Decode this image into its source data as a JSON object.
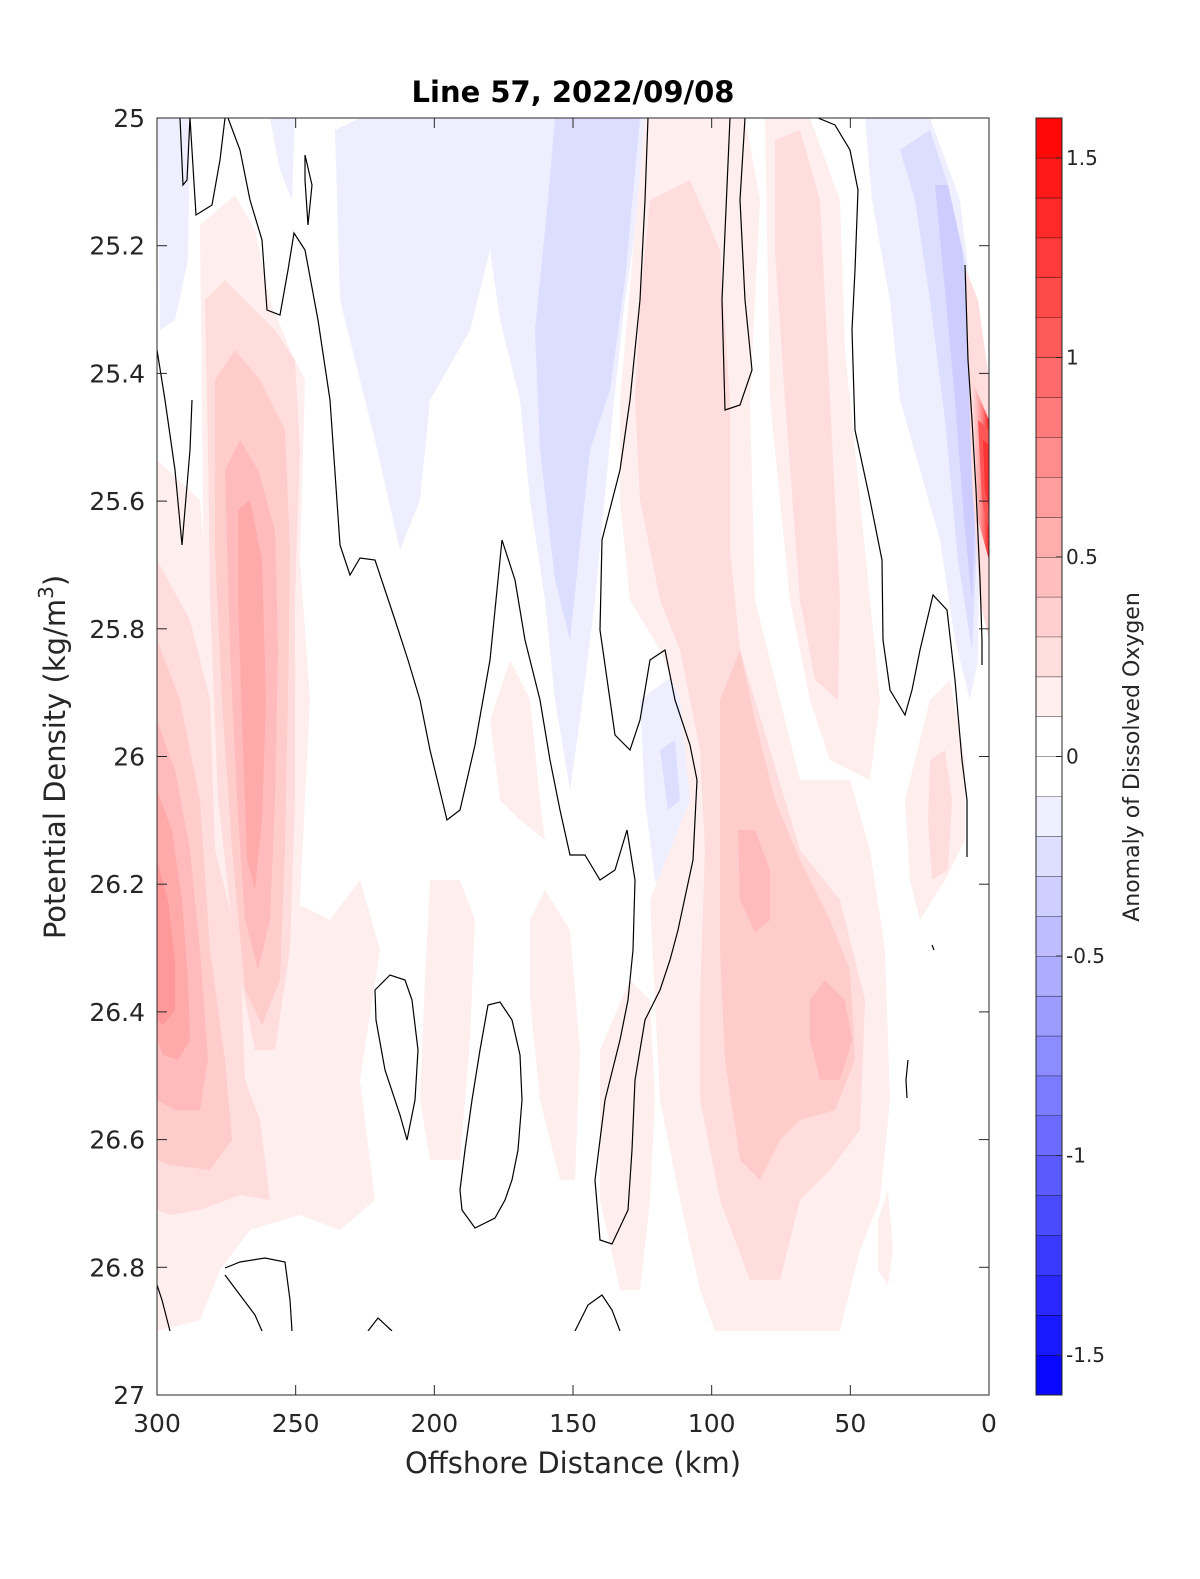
{
  "chart_data": {
    "type": "heatmap",
    "title": "Line 57, 2022/09/08",
    "xlabel": "Offshore Distance (km)",
    "ylabel_main": "Potential Density (kg/m",
    "ylabel_sup": "3",
    "ylabel_close": ")",
    "colorbar_label": "Anomaly of Dissolved Oxygen",
    "xlim": [
      300,
      0
    ],
    "ylim": [
      25,
      27
    ],
    "y_reversed": true,
    "x_reversed": true,
    "x_ticks": [
      "300",
      "250",
      "200",
      "150",
      "100",
      "50",
      "0"
    ],
    "x_tick_values": [
      300,
      250,
      200,
      150,
      100,
      50,
      0
    ],
    "y_ticks": [
      "25",
      "25.2",
      "25.4",
      "25.6",
      "25.8",
      "26",
      "26.2",
      "26.4",
      "26.6",
      "26.8",
      "27"
    ],
    "y_tick_values": [
      25,
      25.2,
      25.4,
      25.6,
      25.8,
      26,
      26.2,
      26.4,
      26.6,
      26.8,
      27
    ],
    "colorbar": {
      "clim": [
        -1.6,
        1.6
      ],
      "step": 0.1,
      "ticks": [
        "1.5",
        "1",
        "0.5",
        "0",
        "-0.5",
        "-1",
        "-1.5"
      ],
      "tick_values": [
        1.5,
        1,
        0.5,
        0,
        -0.5,
        -1,
        -1.5
      ],
      "positive_color": "#ff0000",
      "negative_color": "#0000ff",
      "zero_color": "#ffffff"
    },
    "data_extent_max_density": 26.9,
    "grid": false,
    "legend": "none",
    "anomaly_features": [
      {
        "x": 295,
        "y": 26.38,
        "value": 0.75
      },
      {
        "x": 265,
        "y": 25.85,
        "value": 0.6
      },
      {
        "x": 285,
        "y": 26.6,
        "value": 0.45
      },
      {
        "x": 95,
        "y": 25.5,
        "value": 0.3
      },
      {
        "x": 85,
        "y": 26.2,
        "value": 0.45
      },
      {
        "x": 60,
        "y": 26.45,
        "value": 0.42
      },
      {
        "x": 70,
        "y": 25.2,
        "value": 0.2
      },
      {
        "x": 2,
        "y": 25.55,
        "value": 1.3
      },
      {
        "x": 215,
        "y": 25.2,
        "value": -0.25
      },
      {
        "x": 140,
        "y": 25.15,
        "value": -0.3
      },
      {
        "x": 150,
        "y": 25.8,
        "value": -0.2
      },
      {
        "x": 115,
        "y": 26.0,
        "value": -0.25
      },
      {
        "x": 20,
        "y": 25.3,
        "value": -0.45
      }
    ]
  }
}
